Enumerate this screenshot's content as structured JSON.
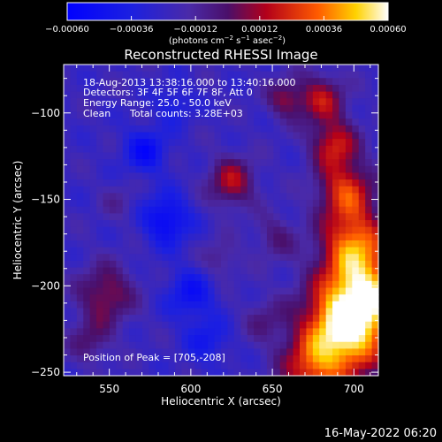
{
  "chart_data": {
    "type": "heatmap",
    "title": "Reconstructed RHESSI Image",
    "xlabel": "Heliocentric X (arcsec)",
    "ylabel": "Heliocentric Y (arcsec)",
    "xlim": [
      522,
      715
    ],
    "ylim": [
      -252,
      -72
    ],
    "x_ticks": [
      550,
      600,
      650,
      700
    ],
    "y_ticks": [
      -100,
      -150,
      -200,
      -250
    ],
    "x_tick_labels": [
      "550",
      "600",
      "650",
      "700"
    ],
    "y_tick_labels": [
      "−100",
      "−150",
      "−200",
      "−250"
    ],
    "colorbar": {
      "range": [
        -0.0006,
        0.0006
      ],
      "ticks": [
        -0.0006,
        -0.00036,
        -0.00012,
        0.00012,
        0.00036,
        0.0006
      ],
      "tick_labels": [
        "−0.00060",
        "−0.00036",
        "−0.00012",
        "0.00012",
        "0.00036",
        "0.00060"
      ],
      "unit_label": "(photons cm",
      "unit_label_parts": [
        "(photons cm",
        "−2",
        " s",
        "−1",
        " asec",
        "−2",
        ")"
      ]
    },
    "annotations": {
      "time_range": "18-Aug-2013 13:38:16.000 to 13:40:16.000",
      "detectors": "Detectors: 3F 4F 5F 6F 7F 8F, Att 0",
      "energy_range": "Energy Range: 25.0 - 50.0 keV",
      "clean_label": "Clean",
      "total_counts": "Total counts: 3.28E+03",
      "peak": "Position of Peak = [705,-208]"
    },
    "peak_position": [
      705,
      -208
    ],
    "blobs": [
      {
        "x": 705,
        "y": -208,
        "r": 18,
        "v": 0.00075
      },
      {
        "x": 690,
        "y": -232,
        "r": 18,
        "v": 0.0006
      },
      {
        "x": 700,
        "y": -175,
        "r": 14,
        "v": 0.0005
      },
      {
        "x": 695,
        "y": -145,
        "r": 12,
        "v": 0.00045
      },
      {
        "x": 688,
        "y": -118,
        "r": 10,
        "v": 0.0004
      },
      {
        "x": 680,
        "y": -92,
        "r": 10,
        "v": 0.00036
      },
      {
        "x": 658,
        "y": -92,
        "r": 8,
        "v": 0.00028
      },
      {
        "x": 672,
        "y": -250,
        "r": 12,
        "v": 0.0003
      },
      {
        "x": 652,
        "y": -172,
        "r": 9,
        "v": 0.00018
      },
      {
        "x": 645,
        "y": -220,
        "r": 9,
        "v": 0.00015
      },
      {
        "x": 625,
        "y": -140,
        "r": 10,
        "v": 0.00036
      },
      {
        "x": 618,
        "y": -185,
        "r": 8,
        "v": 0.00016
      },
      {
        "x": 548,
        "y": -205,
        "r": 12,
        "v": 0.00032
      },
      {
        "x": 538,
        "y": -232,
        "r": 9,
        "v": 0.0002
      },
      {
        "x": 556,
        "y": -152,
        "r": 8,
        "v": 0.0001
      },
      {
        "x": 572,
        "y": -122,
        "r": 9,
        "v": -0.0003
      },
      {
        "x": 585,
        "y": -162,
        "r": 10,
        "v": -0.00034
      },
      {
        "x": 600,
        "y": -205,
        "r": 10,
        "v": -0.00026
      },
      {
        "x": 590,
        "y": -95,
        "r": 8,
        "v": -0.00018
      },
      {
        "x": 610,
        "y": -232,
        "r": 9,
        "v": -0.0002
      }
    ]
  },
  "footer": {
    "date": "16-May-2022 06:20"
  }
}
